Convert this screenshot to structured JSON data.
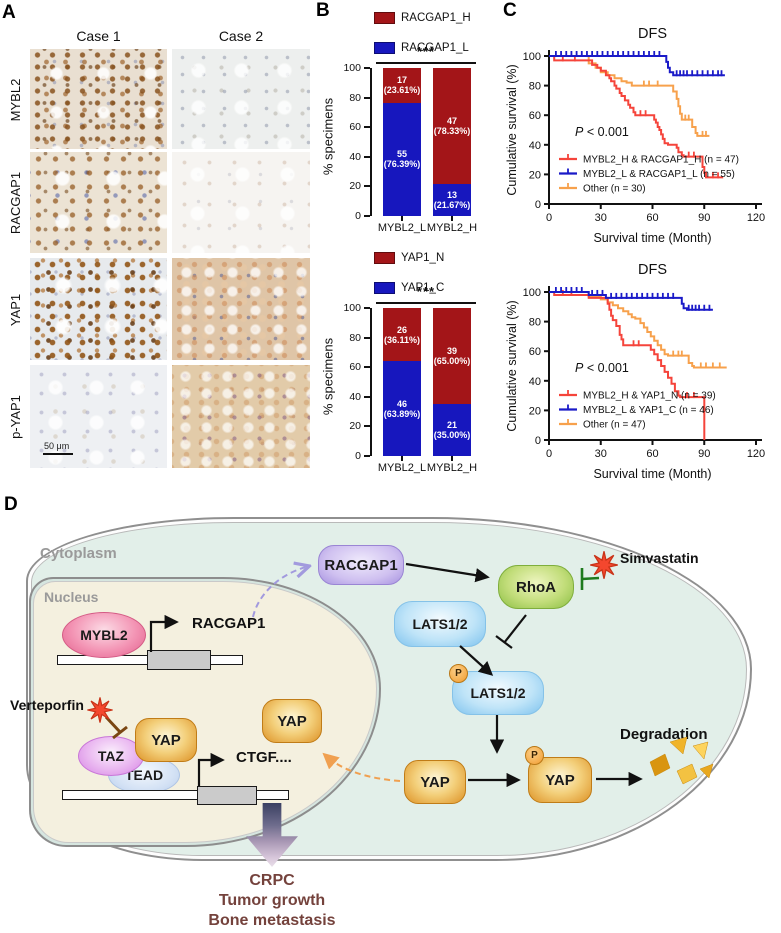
{
  "panels": {
    "a": {
      "label": "A",
      "col_headers": [
        "Case 1",
        "Case 2"
      ],
      "row_labels": [
        "MYBL2",
        "RACGAP1",
        "YAP1",
        "p-YAP1"
      ],
      "scale_bar": "50 μm"
    },
    "b": {
      "label": "B"
    },
    "c": {
      "label": "C"
    },
    "d": {
      "label": "D",
      "compartments": {
        "cytoplasm": "Cytoplasm",
        "nucleus": "Nucleus"
      },
      "drugs": {
        "verteporfin": "Verteporfin",
        "simvastatin": "Simvastatin"
      },
      "nodes": {
        "mybl2": "MYBL2",
        "racgap1_gene": "RACGAP1",
        "racgap1": "RACGAP1",
        "rhoa": "RhoA",
        "lats": "LATS1/2",
        "p": "P",
        "taz": "TAZ",
        "tead": "TEAD",
        "yap": "YAP",
        "ctgf": "CTGF....",
        "degradation": "Degradation"
      },
      "outcome": [
        "CRPC",
        "Tumor growth",
        "Bone metastasis"
      ]
    }
  },
  "chart_data": [
    {
      "type": "bar",
      "id": "b-top",
      "stacked": true,
      "ylabel": "% specimens",
      "ylim": [
        0,
        100
      ],
      "yticks": [
        0,
        20,
        40,
        60,
        80,
        100
      ],
      "significance": "***",
      "categories": [
        "MYBL2_L",
        "MYBL2_H"
      ],
      "series": [
        {
          "name": "RACGAP1_H",
          "color": "#A31518",
          "values": [
            23.61,
            78.33
          ],
          "counts": [
            17,
            47
          ]
        },
        {
          "name": "RACGAP1_L",
          "color": "#1717BE",
          "values": [
            76.39,
            21.67
          ],
          "counts": [
            55,
            13
          ]
        }
      ]
    },
    {
      "type": "bar",
      "id": "b-bottom",
      "stacked": true,
      "ylabel": "% specimens",
      "ylim": [
        0,
        100
      ],
      "yticks": [
        0,
        20,
        40,
        60,
        80,
        100
      ],
      "significance": "***",
      "categories": [
        "MYBL2_L",
        "MYBL2_H"
      ],
      "series": [
        {
          "name": "YAP1_N",
          "color": "#A31518",
          "values": [
            36.11,
            65.0
          ],
          "counts": [
            26,
            39
          ]
        },
        {
          "name": "YAP1_C",
          "color": "#1717BE",
          "values": [
            63.89,
            35.0
          ],
          "counts": [
            46,
            21
          ]
        }
      ]
    },
    {
      "type": "km",
      "id": "c-top",
      "title": "DFS",
      "xlabel": "Survival time (Month)",
      "ylabel": "Cumulative survival (%)",
      "xlim": [
        0,
        120
      ],
      "ylim": [
        0,
        100
      ],
      "xticks": [
        0,
        30,
        60,
        90,
        120
      ],
      "yticks": [
        0,
        20,
        40,
        60,
        80,
        100
      ],
      "p_text": "P < 0.001",
      "series": [
        {
          "name": "MYBL2_H & RACGAP1_H (n = 47)",
          "color": "#F5443B",
          "steps": [
            [
              0,
              100
            ],
            [
              3,
              97
            ],
            [
              22,
              97
            ],
            [
              25,
              94
            ],
            [
              28,
              92
            ],
            [
              30,
              90
            ],
            [
              33,
              87
            ],
            [
              35,
              85
            ],
            [
              36,
              83
            ],
            [
              38,
              80
            ],
            [
              39,
              78
            ],
            [
              41,
              75
            ],
            [
              42,
              73
            ],
            [
              44,
              70
            ],
            [
              46,
              67
            ],
            [
              47,
              65
            ],
            [
              49,
              62
            ],
            [
              50,
              60
            ],
            [
              59,
              60
            ],
            [
              61,
              57
            ],
            [
              62,
              55
            ],
            [
              63,
              52
            ],
            [
              64,
              50
            ],
            [
              65,
              47
            ],
            [
              66,
              44
            ],
            [
              67,
              41
            ],
            [
              69,
              40
            ],
            [
              74,
              38
            ],
            [
              75,
              35
            ],
            [
              77,
              33
            ],
            [
              78,
              32
            ],
            [
              88,
              32
            ],
            [
              89,
              25
            ],
            [
              90,
              21
            ],
            [
              91,
              18
            ],
            [
              101,
              18
            ]
          ],
          "censors": [
            [
              8,
              97
            ],
            [
              15,
              97
            ],
            [
              53,
              60
            ],
            [
              56,
              60
            ],
            [
              81,
              32
            ],
            [
              84,
              32
            ],
            [
              95,
              18
            ],
            [
              98,
              18
            ]
          ]
        },
        {
          "name": "MYBL2_L & RACGAP1_L (n = 55)",
          "color": "#1A1AC8",
          "steps": [
            [
              0,
              100
            ],
            [
              67,
              100
            ],
            [
              68,
              96
            ],
            [
              69,
              92
            ],
            [
              70,
              89
            ],
            [
              72,
              87
            ],
            [
              102,
              87
            ]
          ],
          "censors": [
            [
              4,
              100
            ],
            [
              7,
              100
            ],
            [
              10,
              100
            ],
            [
              13,
              100
            ],
            [
              16,
              100
            ],
            [
              19,
              100
            ],
            [
              22,
              100
            ],
            [
              25,
              100
            ],
            [
              28,
              100
            ],
            [
              31,
              100
            ],
            [
              34,
              100
            ],
            [
              37,
              100
            ],
            [
              40,
              100
            ],
            [
              43,
              100
            ],
            [
              46,
              100
            ],
            [
              49,
              100
            ],
            [
              52,
              100
            ],
            [
              55,
              100
            ],
            [
              58,
              100
            ],
            [
              61,
              100
            ],
            [
              64,
              100
            ],
            [
              74,
              87
            ],
            [
              76,
              87
            ],
            [
              78,
              87
            ],
            [
              80,
              87
            ],
            [
              83,
              87
            ],
            [
              86,
              87
            ],
            [
              89,
              87
            ],
            [
              92,
              87
            ],
            [
              95,
              87
            ],
            [
              98,
              87
            ],
            [
              100,
              87
            ]
          ]
        },
        {
          "name": "Other (n = 30)",
          "color": "#F7A14C",
          "steps": [
            [
              0,
              100
            ],
            [
              21,
              100
            ],
            [
              23,
              95
            ],
            [
              27,
              92
            ],
            [
              30,
              89
            ],
            [
              34,
              87
            ],
            [
              38,
              85
            ],
            [
              42,
              83
            ],
            [
              45,
              82
            ],
            [
              48,
              80
            ],
            [
              71,
              80
            ],
            [
              72,
              76
            ],
            [
              74,
              71
            ],
            [
              75,
              66
            ],
            [
              76,
              61
            ],
            [
              77,
              57
            ],
            [
              82,
              57
            ],
            [
              83,
              52
            ],
            [
              85,
              48
            ],
            [
              86,
              46
            ],
            [
              93,
              46
            ]
          ],
          "censors": [
            [
              55,
              80
            ],
            [
              58,
              80
            ],
            [
              63,
              80
            ],
            [
              79,
              57
            ],
            [
              81,
              57
            ],
            [
              89,
              46
            ],
            [
              91,
              46
            ]
          ]
        }
      ]
    },
    {
      "type": "km",
      "id": "c-bottom",
      "title": "DFS",
      "xlabel": "Survival time (Month)",
      "ylabel": "Cumulative survival (%)",
      "xlim": [
        0,
        120
      ],
      "ylim": [
        0,
        100
      ],
      "xticks": [
        0,
        30,
        60,
        90,
        120
      ],
      "yticks": [
        0,
        20,
        40,
        60,
        80,
        100
      ],
      "p_text": "P < 0.001",
      "series": [
        {
          "name": "MYBL2_H & YAP1_N (n = 39)",
          "color": "#F5443B",
          "steps": [
            [
              0,
              100
            ],
            [
              3,
              98
            ],
            [
              22,
              98
            ],
            [
              23,
              96
            ],
            [
              32,
              96
            ],
            [
              34,
              92
            ],
            [
              35,
              88
            ],
            [
              36,
              84
            ],
            [
              37,
              81
            ],
            [
              39,
              77
            ],
            [
              41,
              71
            ],
            [
              42,
              68
            ],
            [
              43,
              64
            ],
            [
              57,
              64
            ],
            [
              59,
              61
            ],
            [
              61,
              58
            ],
            [
              63,
              54
            ],
            [
              65,
              50
            ],
            [
              67,
              46
            ],
            [
              69,
              42
            ],
            [
              71,
              38
            ],
            [
              73,
              33
            ],
            [
              75,
              30
            ],
            [
              76,
              29
            ],
            [
              89,
              29
            ],
            [
              90,
              0
            ]
          ],
          "censors": [
            [
              8,
              98
            ],
            [
              13,
              98
            ],
            [
              49,
              64
            ],
            [
              52,
              64
            ],
            [
              80,
              29
            ],
            [
              84,
              29
            ]
          ]
        },
        {
          "name": "MYBL2_L & YAP1_C (n = 46)",
          "color": "#1A1AC8",
          "steps": [
            [
              0,
              100
            ],
            [
              22,
              100
            ],
            [
              23,
              98
            ],
            [
              32,
              98
            ],
            [
              33,
              96
            ],
            [
              76,
              96
            ],
            [
              77,
              92
            ],
            [
              78,
              89
            ],
            [
              80,
              88
            ],
            [
              95,
              88
            ]
          ],
          "censors": [
            [
              4,
              100
            ],
            [
              7,
              100
            ],
            [
              10,
              100
            ],
            [
              13,
              100
            ],
            [
              16,
              100
            ],
            [
              19,
              100
            ],
            [
              25,
              98
            ],
            [
              28,
              98
            ],
            [
              31,
              98
            ],
            [
              36,
              96
            ],
            [
              39,
              96
            ],
            [
              42,
              96
            ],
            [
              45,
              96
            ],
            [
              48,
              96
            ],
            [
              51,
              96
            ],
            [
              54,
              96
            ],
            [
              57,
              96
            ],
            [
              60,
              96
            ],
            [
              63,
              96
            ],
            [
              66,
              96
            ],
            [
              69,
              96
            ],
            [
              72,
              96
            ],
            [
              81,
              88
            ],
            [
              83,
              88
            ],
            [
              85,
              88
            ],
            [
              87,
              88
            ],
            [
              90,
              88
            ],
            [
              93,
              88
            ]
          ]
        },
        {
          "name": "Other (n = 47)",
          "color": "#F7A14C",
          "steps": [
            [
              0,
              100
            ],
            [
              22,
              100
            ],
            [
              23,
              97
            ],
            [
              30,
              95
            ],
            [
              34,
              93
            ],
            [
              37,
              91
            ],
            [
              40,
              89
            ],
            [
              43,
              87
            ],
            [
              46,
              85
            ],
            [
              48,
              83
            ],
            [
              50,
              82
            ],
            [
              53,
              79
            ],
            [
              55,
              76
            ],
            [
              57,
              73
            ],
            [
              59,
              70
            ],
            [
              61,
              67
            ],
            [
              63,
              64
            ],
            [
              65,
              61
            ],
            [
              67,
              58
            ],
            [
              69,
              57
            ],
            [
              79,
              57
            ],
            [
              81,
              52
            ],
            [
              83,
              50
            ],
            [
              84,
              49
            ],
            [
              103,
              49
            ]
          ],
          "censors": [
            [
              72,
              57
            ],
            [
              75,
              57
            ],
            [
              77,
              57
            ],
            [
              88,
              49
            ],
            [
              91,
              49
            ],
            [
              95,
              49
            ],
            [
              99,
              49
            ]
          ]
        }
      ]
    }
  ]
}
